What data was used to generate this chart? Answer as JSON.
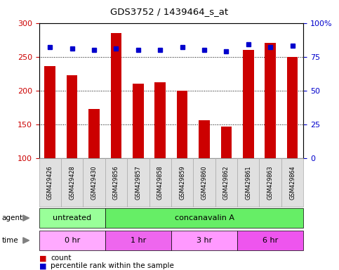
{
  "title": "GDS3752 / 1439464_s_at",
  "samples": [
    "GSM429426",
    "GSM429428",
    "GSM429430",
    "GSM429856",
    "GSM429857",
    "GSM429858",
    "GSM429859",
    "GSM429860",
    "GSM429862",
    "GSM429861",
    "GSM429863",
    "GSM429864"
  ],
  "counts": [
    236,
    223,
    173,
    285,
    210,
    212,
    200,
    156,
    146,
    260,
    270,
    250
  ],
  "percentile_ranks": [
    82,
    81,
    80,
    81,
    80,
    80,
    82,
    80,
    79,
    84,
    82,
    83
  ],
  "ylim_left": [
    100,
    300
  ],
  "ylim_right": [
    0,
    100
  ],
  "yticks_left": [
    100,
    150,
    200,
    250,
    300
  ],
  "yticks_right": [
    0,
    25,
    50,
    75,
    100
  ],
  "bar_color": "#cc0000",
  "dot_color": "#0000cc",
  "agent_groups": [
    {
      "label": "untreated",
      "start": 0,
      "end": 3,
      "color": "#99ff99"
    },
    {
      "label": "concanavalin A",
      "start": 3,
      "end": 12,
      "color": "#66ee66"
    }
  ],
  "time_groups": [
    {
      "label": "0 hr",
      "start": 0,
      "end": 3,
      "color": "#ffaaff"
    },
    {
      "label": "1 hr",
      "start": 3,
      "end": 6,
      "color": "#ee66ee"
    },
    {
      "label": "3 hr",
      "start": 6,
      "end": 9,
      "color": "#ff99ff"
    },
    {
      "label": "6 hr",
      "start": 9,
      "end": 12,
      "color": "#ee55ee"
    }
  ],
  "legend_count_color": "#cc0000",
  "legend_dot_color": "#0000cc",
  "background_color": "#ffffff",
  "plot_bg_color": "#ffffff",
  "left_axis_color": "#cc0000",
  "right_axis_color": "#0000cc",
  "sample_box_color": "#e0e0e0",
  "sample_box_edge": "#aaaaaa"
}
